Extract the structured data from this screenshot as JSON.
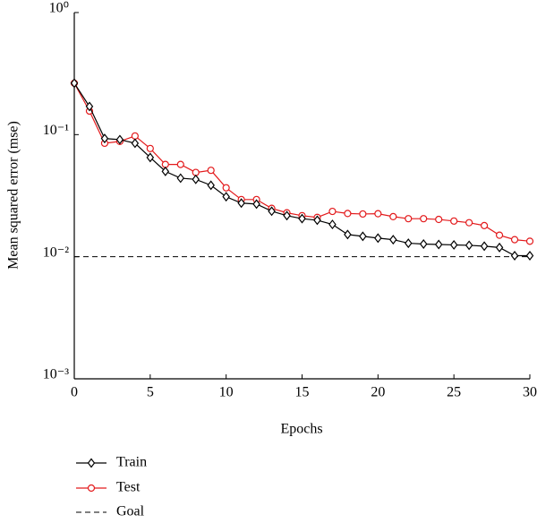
{
  "chart_data": {
    "type": "line",
    "xlabel": "Epochs",
    "ylabel": "Mean squared error (mse)",
    "x": [
      0,
      1,
      2,
      3,
      4,
      5,
      6,
      7,
      8,
      9,
      10,
      11,
      12,
      13,
      14,
      15,
      16,
      17,
      18,
      19,
      20,
      21,
      22,
      23,
      24,
      25,
      26,
      27,
      28,
      29,
      30
    ],
    "series": [
      {
        "name": "Train",
        "color": "#000000",
        "marker": "diamond",
        "values": [
          0.264,
          0.17,
          0.093,
          0.091,
          0.085,
          0.065,
          0.05,
          0.044,
          0.043,
          0.0385,
          0.031,
          0.0275,
          0.027,
          0.0236,
          0.0217,
          0.0205,
          0.0199,
          0.0184,
          0.0152,
          0.0147,
          0.0142,
          0.0138,
          0.0129,
          0.0127,
          0.0126,
          0.0125,
          0.0124,
          0.0122,
          0.0119,
          0.0102,
          0.0102
        ]
      },
      {
        "name": "Test",
        "color": "#e31a1c",
        "marker": "circle",
        "values": [
          0.264,
          0.156,
          0.085,
          0.088,
          0.0975,
          0.077,
          0.057,
          0.057,
          0.049,
          0.051,
          0.0367,
          0.0294,
          0.0294,
          0.0249,
          0.0229,
          0.0217,
          0.021,
          0.0235,
          0.0226,
          0.0224,
          0.0225,
          0.0213,
          0.0205,
          0.0205,
          0.0202,
          0.0196,
          0.019,
          0.018,
          0.015,
          0.0138,
          0.0134
        ]
      }
    ],
    "goal": {
      "name": "Goal",
      "value": 0.01,
      "color": "#000000"
    },
    "xlim": [
      0,
      30
    ],
    "xticks": [
      0,
      5,
      10,
      15,
      20,
      25,
      30
    ],
    "ylim": [
      0.001,
      1
    ],
    "log_y": true,
    "yticks": [
      {
        "value": 1,
        "label": "10⁰"
      },
      {
        "value": 0.1,
        "label": "10⁻¹"
      },
      {
        "value": 0.01,
        "label": "10⁻²"
      },
      {
        "value": 0.001,
        "label": "10⁻³"
      }
    ],
    "legend": "bottom-left"
  }
}
